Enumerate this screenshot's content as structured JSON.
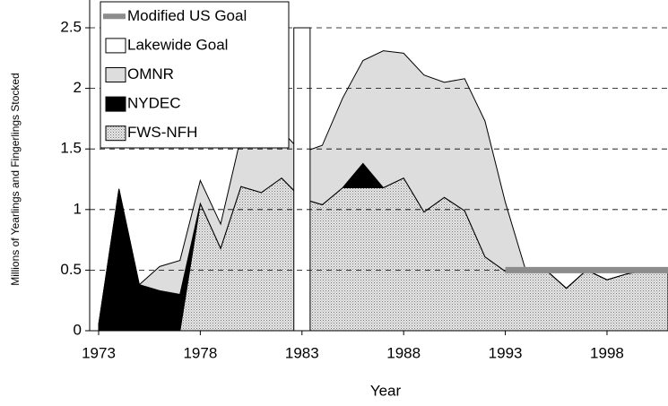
{
  "chart_data": {
    "type": "stacked-area",
    "x_label": "Year",
    "y_label": "Millions of Yearlings and Fingerlings Stocked",
    "x": [
      1973,
      1974,
      1975,
      1976,
      1977,
      1978,
      1979,
      1980,
      1981,
      1982,
      1983,
      1984,
      1985,
      1986,
      1987,
      1988,
      1989,
      1990,
      1991,
      1992,
      1993,
      1994,
      1995,
      1996,
      1997,
      1998,
      1999,
      2000,
      2001
    ],
    "series": [
      {
        "name": "FWS-NFH",
        "color": "#c4c4c4",
        "pattern": "dots",
        "values": [
          0,
          0,
          0,
          0,
          0,
          1.05,
          0.68,
          1.19,
          1.14,
          1.26,
          1.09,
          1.04,
          1.18,
          1.18,
          1.18,
          1.26,
          0.98,
          1.1,
          0.99,
          0.61,
          0.49,
          0.5,
          0.5,
          0.35,
          0.5,
          0.42,
          0.47,
          0.5,
          0.5
        ]
      },
      {
        "name": "NYDEC",
        "color": "#000000",
        "values": [
          0.05,
          1.17,
          0.38,
          0.33,
          0.3,
          0,
          0,
          0,
          0,
          0,
          0,
          0,
          0,
          0.2,
          0,
          0,
          0,
          0,
          0,
          0,
          0,
          0,
          0,
          0,
          0,
          0,
          0,
          0,
          0
        ]
      },
      {
        "name": "OMNR",
        "color": "#dddddd",
        "values": [
          0,
          0,
          0,
          0.2,
          0.28,
          0.19,
          0.2,
          0.41,
          0.46,
          0.39,
          0.38,
          0.49,
          0.74,
          0.85,
          1.13,
          1.03,
          1.13,
          0.95,
          1.09,
          1.12,
          0.57,
          0,
          0,
          0,
          0,
          0,
          0,
          0,
          0
        ]
      }
    ],
    "lines": [
      {
        "name": "Modified US Goal",
        "color": "#8c8c8c",
        "x": [
          1993,
          2001
        ],
        "values": [
          0.5,
          0.5
        ]
      }
    ],
    "bars": [
      {
        "name": "Lakewide Goal",
        "color": "#ffffff",
        "x": 1983,
        "value": 2.5
      }
    ],
    "xlim": [
      1973,
      2001
    ],
    "xticks": [
      1973,
      1978,
      1983,
      1988,
      1993,
      1998
    ],
    "ylim": [
      0,
      2.5
    ],
    "yticks": [
      0,
      0.5,
      1,
      1.5,
      2,
      2.5
    ],
    "grid": true,
    "legend": "upper left"
  }
}
